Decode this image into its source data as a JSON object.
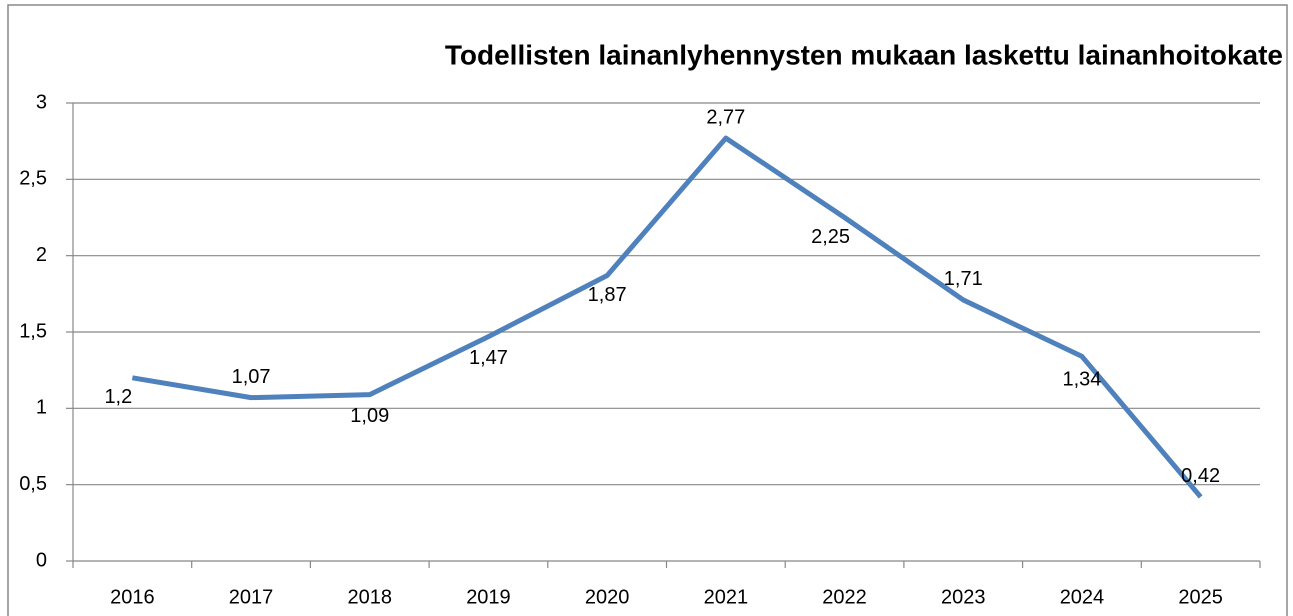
{
  "chart_data": {
    "type": "line",
    "title": "Todellisten lainanlyhennysten mukaan laskettu lainanhoitokate",
    "categories": [
      "2016",
      "2017",
      "2018",
      "2019",
      "2020",
      "2021",
      "2022",
      "2023",
      "2024",
      "2025"
    ],
    "series": [
      {
        "name": "Lainanhoitokate",
        "color": "#4f81bd",
        "values": [
          1.2,
          1.07,
          1.09,
          1.47,
          1.87,
          2.77,
          2.25,
          1.71,
          1.34,
          0.42
        ],
        "value_labels": [
          "1,2",
          "1,07",
          "1,09",
          "1,47",
          "1,87",
          "2,77",
          "2,25",
          "1,71",
          "1,34",
          "0,42"
        ]
      }
    ],
    "ylim": [
      0,
      3
    ],
    "yticks": [
      0,
      {
        "value": 0.5,
        "label": "0,5"
      },
      1,
      {
        "value": 1.5,
        "label": "1,5"
      },
      2,
      {
        "value": 2.5,
        "label": "2,5"
      },
      3
    ],
    "grid": true
  }
}
